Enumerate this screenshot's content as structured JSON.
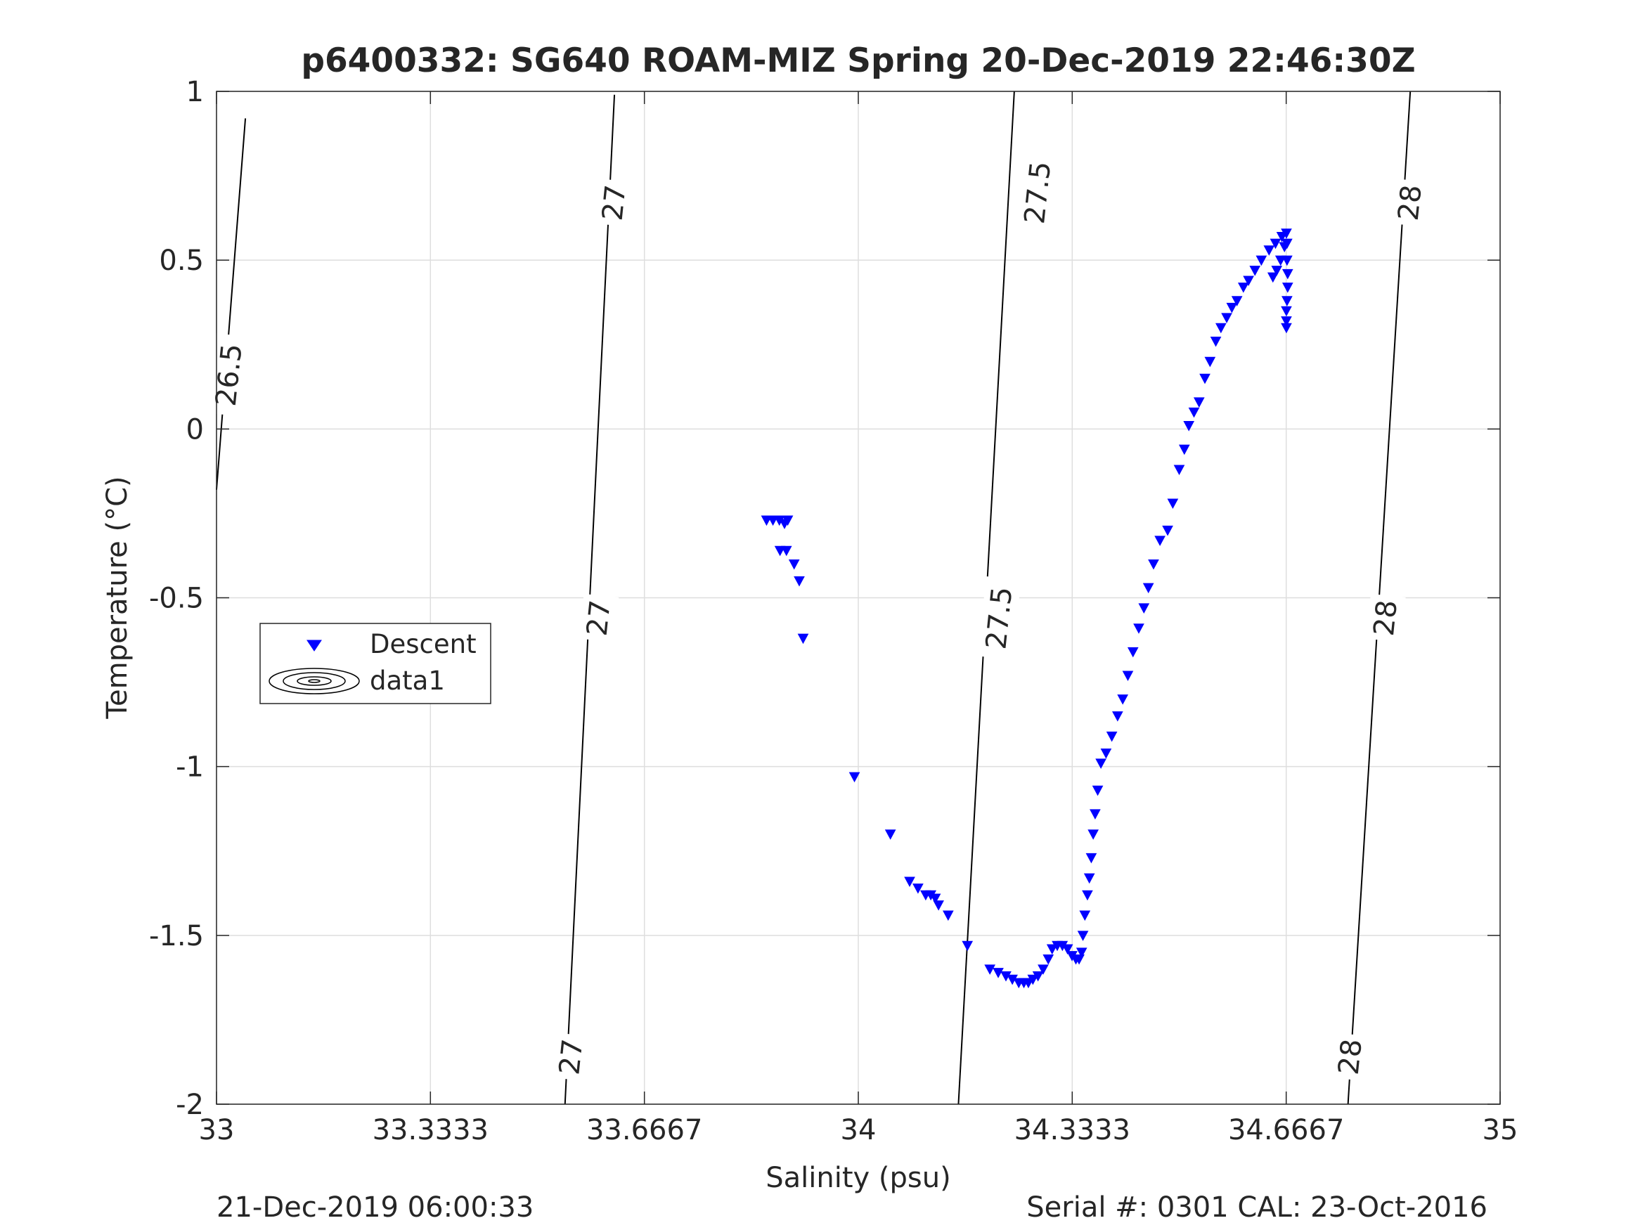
{
  "footer": {
    "left": "21-Dec-2019 06:00:33",
    "right": "Serial #: 0301  CAL: 23-Oct-2016"
  },
  "colors": {
    "descent": "#0000ff",
    "grid": "#dedede",
    "axis": "#262626",
    "contour": "#000000"
  },
  "chart_data": {
    "type": "scatter",
    "title": "p6400332: SG640 ROAM-MIZ Spring 20-Dec-2019 22:46:30Z",
    "xlabel": "Salinity (psu)",
    "ylabel": "Temperature (°C)",
    "xlim": [
      33,
      35
    ],
    "ylim": [
      -2,
      1
    ],
    "xticks": [
      33,
      33.3333,
      33.6667,
      34,
      34.3333,
      34.6667,
      35
    ],
    "xtick_labels": [
      "33",
      "33.3333",
      "33.6667",
      "34",
      "34.3333",
      "34.6667",
      "35"
    ],
    "yticks": [
      -2,
      -1.5,
      -1,
      -0.5,
      0,
      0.5,
      1
    ],
    "ytick_labels": [
      "-2",
      "-1.5",
      "-1",
      "-0.5",
      "0",
      "0.5",
      "1"
    ],
    "grid": true,
    "legend": {
      "position": "middle-left",
      "entries": [
        "Descent",
        "data1"
      ]
    },
    "series": [
      {
        "name": "Descent",
        "marker": "triangle-down",
        "points": [
          [
            33.857,
            -0.27
          ],
          [
            33.867,
            -0.27
          ],
          [
            33.877,
            -0.27
          ],
          [
            33.89,
            -0.27
          ],
          [
            33.885,
            -0.28
          ],
          [
            33.878,
            -0.36
          ],
          [
            33.888,
            -0.36
          ],
          [
            33.9,
            -0.4
          ],
          [
            33.908,
            -0.45
          ],
          [
            33.914,
            -0.62
          ],
          [
            33.994,
            -1.03
          ],
          [
            34.05,
            -1.2
          ],
          [
            34.08,
            -1.34
          ],
          [
            34.093,
            -1.36
          ],
          [
            34.105,
            -1.38
          ],
          [
            34.113,
            -1.38
          ],
          [
            34.12,
            -1.39
          ],
          [
            34.125,
            -1.41
          ],
          [
            34.14,
            -1.44
          ],
          [
            34.17,
            -1.53
          ],
          [
            34.205,
            -1.6
          ],
          [
            34.218,
            -1.61
          ],
          [
            34.23,
            -1.62
          ],
          [
            34.24,
            -1.63
          ],
          [
            34.25,
            -1.64
          ],
          [
            34.258,
            -1.64
          ],
          [
            34.265,
            -1.64
          ],
          [
            34.272,
            -1.63
          ],
          [
            34.28,
            -1.62
          ],
          [
            34.288,
            -1.6
          ],
          [
            34.296,
            -1.57
          ],
          [
            34.302,
            -1.54
          ],
          [
            34.31,
            -1.53
          ],
          [
            34.318,
            -1.53
          ],
          [
            34.326,
            -1.54
          ],
          [
            34.333,
            -1.56
          ],
          [
            34.339,
            -1.57
          ],
          [
            34.344,
            -1.57
          ],
          [
            34.348,
            -1.55
          ],
          [
            34.35,
            -1.5
          ],
          [
            34.353,
            -1.44
          ],
          [
            34.357,
            -1.38
          ],
          [
            34.36,
            -1.33
          ],
          [
            34.363,
            -1.27
          ],
          [
            34.366,
            -1.2
          ],
          [
            34.369,
            -1.14
          ],
          [
            34.373,
            -1.07
          ],
          [
            34.378,
            -0.99
          ],
          [
            34.386,
            -0.96
          ],
          [
            34.395,
            -0.91
          ],
          [
            34.404,
            -0.85
          ],
          [
            34.412,
            -0.8
          ],
          [
            34.42,
            -0.73
          ],
          [
            34.428,
            -0.66
          ],
          [
            34.437,
            -0.59
          ],
          [
            34.445,
            -0.53
          ],
          [
            34.452,
            -0.47
          ],
          [
            34.46,
            -0.4
          ],
          [
            34.47,
            -0.33
          ],
          [
            34.482,
            -0.3
          ],
          [
            34.49,
            -0.22
          ],
          [
            34.5,
            -0.12
          ],
          [
            34.508,
            -0.06
          ],
          [
            34.515,
            0.01
          ],
          [
            34.523,
            0.05
          ],
          [
            34.531,
            0.08
          ],
          [
            34.54,
            0.15
          ],
          [
            34.548,
            0.2
          ],
          [
            34.557,
            0.26
          ],
          [
            34.565,
            0.3
          ],
          [
            34.574,
            0.33
          ],
          [
            34.582,
            0.36
          ],
          [
            34.59,
            0.38
          ],
          [
            34.6,
            0.42
          ],
          [
            34.608,
            0.44
          ],
          [
            34.618,
            0.47
          ],
          [
            34.628,
            0.5
          ],
          [
            34.64,
            0.53
          ],
          [
            34.65,
            0.55
          ],
          [
            34.66,
            0.57
          ],
          [
            34.667,
            0.58
          ],
          [
            34.668,
            0.55
          ],
          [
            34.668,
            0.5
          ],
          [
            34.669,
            0.46
          ],
          [
            34.669,
            0.42
          ],
          [
            34.668,
            0.38
          ],
          [
            34.667,
            0.35
          ],
          [
            34.667,
            0.32
          ],
          [
            34.667,
            0.3
          ],
          [
            34.664,
            0.54
          ],
          [
            34.658,
            0.5
          ],
          [
            34.652,
            0.47
          ],
          [
            34.646,
            0.45
          ]
        ]
      }
    ],
    "contours": [
      {
        "label": "26.5",
        "points": [
          [
            33.0,
            -0.18
          ],
          [
            33.045,
            0.92
          ]
        ]
      },
      {
        "label": "27",
        "points": [
          [
            33.543,
            -2
          ],
          [
            33.62,
            0.99
          ]
        ]
      },
      {
        "label": "27.5",
        "points": [
          [
            34.156,
            -2
          ],
          [
            34.243,
            1
          ]
        ]
      },
      {
        "label": "28",
        "points": [
          [
            34.763,
            -2
          ],
          [
            34.86,
            1
          ]
        ]
      }
    ],
    "contour_labels": [
      {
        "text": "26.5",
        "x": 33.02,
        "y": 0.16
      },
      {
        "text": "27",
        "x": 33.553,
        "y": -1.86
      },
      {
        "text": "27",
        "x": 33.596,
        "y": -0.56
      },
      {
        "text": "27",
        "x": 33.62,
        "y": 0.67
      },
      {
        "text": "27.5",
        "x": 34.22,
        "y": -0.56
      },
      {
        "text": "27.5",
        "x": 34.28,
        "y": 0.7
      },
      {
        "text": "28",
        "x": 34.767,
        "y": -1.86
      },
      {
        "text": "28",
        "x": 34.822,
        "y": -0.56
      },
      {
        "text": "28",
        "x": 34.86,
        "y": 0.67
      }
    ]
  }
}
